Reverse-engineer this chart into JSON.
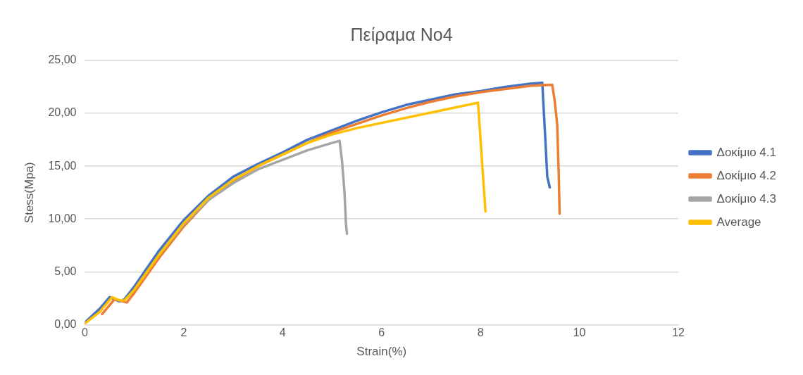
{
  "chart_data": {
    "type": "line",
    "title": "Πείραμα Νο4",
    "xlabel": "Strain(%)",
    "ylabel": "Stess(Mpa)",
    "xlim": [
      0,
      12
    ],
    "xticks": [
      0,
      2,
      4,
      6,
      8,
      10,
      12
    ],
    "ylim": [
      0,
      25
    ],
    "yticks": [
      {
        "value": 0,
        "label": "0,00"
      },
      {
        "value": 5,
        "label": "5,00"
      },
      {
        "value": 10,
        "label": "10,00"
      },
      {
        "value": 15,
        "label": "15,00"
      },
      {
        "value": 20,
        "label": "20,00"
      },
      {
        "value": 25,
        "label": "25,00"
      }
    ],
    "grid": "y",
    "legend": "right",
    "marker": "none",
    "line_style": "solid",
    "series": [
      {
        "name": "Δοκίμιο 4.1",
        "color": "#4472c4",
        "x": [
          0,
          0.3,
          0.5,
          0.7,
          0.8,
          1.0,
          1.5,
          2.0,
          2.5,
          3.0,
          3.5,
          4.0,
          4.5,
          5.0,
          5.5,
          6.0,
          6.5,
          7.0,
          7.5,
          8.0,
          8.5,
          9.0,
          9.25,
          9.27,
          9.3,
          9.35,
          9.4
        ],
        "values": [
          0.2,
          1.5,
          2.6,
          2.2,
          2.4,
          3.6,
          7.0,
          9.9,
          12.2,
          14.0,
          15.2,
          16.3,
          17.5,
          18.4,
          19.3,
          20.1,
          20.8,
          21.3,
          21.8,
          22.1,
          22.5,
          22.8,
          22.9,
          21.0,
          18.5,
          14.0,
          13.0
        ]
      },
      {
        "name": "Δοκίμιο 4.2",
        "color": "#ed7d31",
        "x": [
          0.35,
          0.6,
          0.85,
          1.0,
          1.5,
          2.0,
          2.5,
          3.0,
          3.5,
          4.0,
          4.5,
          5.0,
          5.5,
          6.0,
          6.5,
          7.0,
          7.5,
          8.0,
          8.5,
          9.0,
          9.45,
          9.5,
          9.55,
          9.58,
          9.6
        ],
        "values": [
          1.0,
          2.4,
          2.1,
          3.0,
          6.3,
          9.3,
          11.8,
          13.6,
          15.0,
          16.1,
          17.2,
          18.2,
          19.0,
          19.8,
          20.5,
          21.1,
          21.6,
          22.0,
          22.3,
          22.6,
          22.7,
          21.2,
          19.0,
          14.5,
          10.5
        ]
      },
      {
        "name": "Δοκίμιο 4.3",
        "color": "#a5a5a5",
        "x": [
          1.5,
          2.0,
          2.5,
          3.0,
          3.5,
          4.0,
          4.5,
          5.0,
          5.15,
          5.2,
          5.25,
          5.28,
          5.3
        ],
        "values": [
          6.6,
          9.5,
          11.8,
          13.4,
          14.7,
          15.6,
          16.5,
          17.2,
          17.4,
          15.5,
          12.5,
          9.5,
          8.6
        ]
      },
      {
        "name": "Average",
        "color": "#ffc000",
        "x": [
          0,
          0.3,
          0.55,
          0.7,
          0.8,
          1.0,
          1.5,
          2.0,
          2.5,
          3.0,
          3.5,
          4.0,
          4.5,
          5.0,
          5.5,
          7.95,
          8.1
        ],
        "values": [
          0.1,
          1.2,
          2.6,
          2.3,
          2.3,
          3.3,
          6.6,
          9.6,
          12.0,
          13.7,
          15.0,
          16.1,
          17.2,
          18.0,
          18.6,
          21.0,
          10.7
        ]
      }
    ]
  }
}
